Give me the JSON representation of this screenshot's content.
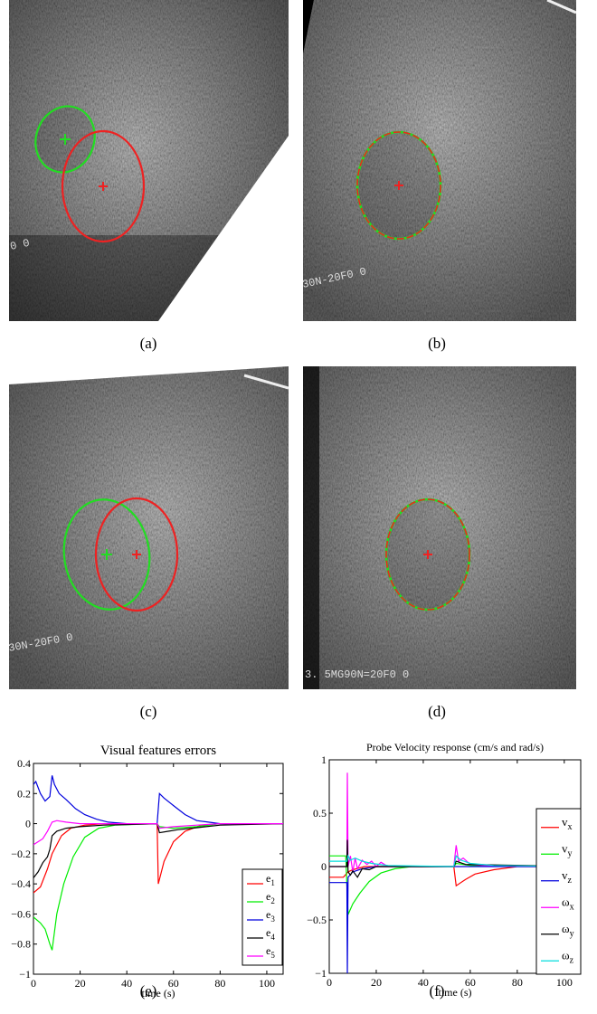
{
  "figure": {
    "panels": [
      {
        "label": "(a)",
        "overlay_text": "0 0"
      },
      {
        "label": "(b)",
        "overlay_text": "30N-20F0 0"
      },
      {
        "label": "(c)",
        "overlay_text": "30N-20F0 0"
      },
      {
        "label": "(d)",
        "overlay_text": "3. 5MG90N=20F0 0"
      }
    ],
    "overlay_colors": {
      "current_contour": "#22dd22",
      "desired_contour": "#ee2222"
    }
  },
  "chart_data": [
    {
      "type": "line",
      "label": "(e)",
      "title": "Visual features errors",
      "xlabel": "time (s)",
      "ylabel": "",
      "xlim": [
        0,
        107
      ],
      "ylim": [
        -1,
        0.4
      ],
      "xticks": [
        0,
        20,
        40,
        60,
        80,
        100
      ],
      "yticks": [
        0.4,
        0.2,
        0,
        -0.2,
        -0.4,
        -0.6,
        -0.8,
        -1
      ],
      "ytick_labels": [
        "0.4",
        "0.2",
        "0",
        "−0.2",
        "−0.4",
        "−0.6",
        "−0.8",
        "−1"
      ],
      "legend_position": "bottom-right",
      "series": [
        {
          "name": "e",
          "sub": "1",
          "color": "#ff0000",
          "points": [
            [
              0,
              -0.46
            ],
            [
              3,
              -0.42
            ],
            [
              6,
              -0.3
            ],
            [
              8,
              -0.2
            ],
            [
              12,
              -0.08
            ],
            [
              16,
              -0.03
            ],
            [
              22,
              -0.01
            ],
            [
              30,
              0
            ],
            [
              53,
              0
            ],
            [
              53.5,
              -0.4
            ],
            [
              56,
              -0.25
            ],
            [
              60,
              -0.12
            ],
            [
              65,
              -0.05
            ],
            [
              72,
              -0.01
            ],
            [
              80,
              0
            ],
            [
              107,
              0
            ]
          ]
        },
        {
          "name": "e",
          "sub": "2",
          "color": "#00ee00",
          "points": [
            [
              0,
              -0.62
            ],
            [
              3,
              -0.66
            ],
            [
              5,
              -0.7
            ],
            [
              7,
              -0.8
            ],
            [
              8,
              -0.84
            ],
            [
              10,
              -0.6
            ],
            [
              13,
              -0.4
            ],
            [
              17,
              -0.22
            ],
            [
              22,
              -0.09
            ],
            [
              28,
              -0.03
            ],
            [
              35,
              -0.01
            ],
            [
              53,
              0
            ],
            [
              54,
              -0.02
            ],
            [
              60,
              -0.03
            ],
            [
              70,
              -0.02
            ],
            [
              80,
              0
            ],
            [
              107,
              0
            ]
          ]
        },
        {
          "name": "e",
          "sub": "3",
          "color": "#0000dd",
          "points": [
            [
              0,
              0.26
            ],
            [
              1,
              0.28
            ],
            [
              3,
              0.2
            ],
            [
              5,
              0.15
            ],
            [
              7,
              0.18
            ],
            [
              8,
              0.32
            ],
            [
              9,
              0.26
            ],
            [
              11,
              0.2
            ],
            [
              14,
              0.16
            ],
            [
              18,
              0.1
            ],
            [
              22,
              0.06
            ],
            [
              27,
              0.03
            ],
            [
              32,
              0.01
            ],
            [
              40,
              0
            ],
            [
              53,
              0
            ],
            [
              54,
              0.2
            ],
            [
              56,
              0.17
            ],
            [
              60,
              0.12
            ],
            [
              65,
              0.06
            ],
            [
              70,
              0.02
            ],
            [
              75,
              0.01
            ],
            [
              80,
              0
            ],
            [
              107,
              0
            ]
          ]
        },
        {
          "name": "e",
          "sub": "4",
          "color": "#000000",
          "points": [
            [
              0,
              -0.36
            ],
            [
              2,
              -0.32
            ],
            [
              4,
              -0.26
            ],
            [
              6,
              -0.22
            ],
            [
              7,
              -0.17
            ],
            [
              8,
              -0.08
            ],
            [
              10,
              -0.05
            ],
            [
              14,
              -0.03
            ],
            [
              20,
              -0.02
            ],
            [
              30,
              -0.01
            ],
            [
              53,
              0
            ],
            [
              54,
              -0.06
            ],
            [
              58,
              -0.05
            ],
            [
              62,
              -0.04
            ],
            [
              68,
              -0.03
            ],
            [
              74,
              -0.02
            ],
            [
              80,
              -0.01
            ],
            [
              107,
              0
            ]
          ]
        },
        {
          "name": "e",
          "sub": "5",
          "color": "#ff00ff",
          "points": [
            [
              0,
              -0.14
            ],
            [
              2,
              -0.12
            ],
            [
              4,
              -0.1
            ],
            [
              6,
              -0.05
            ],
            [
              8,
              0.01
            ],
            [
              10,
              0.02
            ],
            [
              14,
              0.01
            ],
            [
              20,
              0
            ],
            [
              53,
              0
            ],
            [
              54,
              -0.03
            ],
            [
              60,
              -0.02
            ],
            [
              70,
              -0.01
            ],
            [
              80,
              0
            ],
            [
              107,
              0
            ]
          ]
        }
      ]
    },
    {
      "type": "line",
      "label": "(f)",
      "title": "Probe Velocity response (cm/s and rad/s)",
      "xlabel": "time (s)",
      "ylabel": "",
      "xlim": [
        0,
        107
      ],
      "ylim": [
        -1,
        1
      ],
      "xticks": [
        0,
        20,
        40,
        60,
        80,
        100
      ],
      "yticks": [
        1,
        0.5,
        0,
        -0.5,
        -1
      ],
      "ytick_labels": [
        "1",
        "0.5",
        "0",
        "−0.5",
        "−1"
      ],
      "legend_position": "right",
      "series": [
        {
          "name": "v",
          "sub": "x",
          "color": "#ff0000",
          "points": [
            [
              0,
              -0.1
            ],
            [
              6,
              -0.1
            ],
            [
              8,
              -0.05
            ],
            [
              10,
              -0.03
            ],
            [
              15,
              0
            ],
            [
              53,
              0
            ],
            [
              54,
              -0.18
            ],
            [
              58,
              -0.12
            ],
            [
              62,
              -0.07
            ],
            [
              70,
              -0.03
            ],
            [
              80,
              0
            ],
            [
              107,
              0
            ]
          ]
        },
        {
          "name": "v",
          "sub": "y",
          "color": "#00ee00",
          "points": [
            [
              0,
              0.1
            ],
            [
              7,
              0.1
            ],
            [
              8,
              -0.45
            ],
            [
              10,
              -0.35
            ],
            [
              13,
              -0.25
            ],
            [
              17,
              -0.14
            ],
            [
              22,
              -0.06
            ],
            [
              28,
              -0.02
            ],
            [
              35,
              0
            ],
            [
              53,
              0
            ],
            [
              54,
              0.03
            ],
            [
              60,
              0.01
            ],
            [
              107,
              0
            ]
          ]
        },
        {
          "name": "v",
          "sub": "z",
          "color": "#0000dd",
          "points": [
            [
              0,
              -0.15
            ],
            [
              7.5,
              -0.15
            ],
            [
              7.7,
              -1
            ],
            [
              8,
              -0.1
            ],
            [
              10,
              -0.05
            ],
            [
              14,
              -0.02
            ],
            [
              20,
              0
            ],
            [
              107,
              0
            ]
          ]
        },
        {
          "name": "ω",
          "sub": "x",
          "color": "#ff00ff",
          "points": [
            [
              0,
              0
            ],
            [
              7.5,
              0
            ],
            [
              7.7,
              0.88
            ],
            [
              8,
              0
            ],
            [
              9,
              0.1
            ],
            [
              10,
              -0.05
            ],
            [
              11,
              0.08
            ],
            [
              12,
              -0.02
            ],
            [
              14,
              0.06
            ],
            [
              16,
              0.02
            ],
            [
              18,
              0.05
            ],
            [
              20,
              0
            ],
            [
              22,
              0.04
            ],
            [
              25,
              0
            ],
            [
              53,
              0
            ],
            [
              54,
              0.2
            ],
            [
              55,
              0.05
            ],
            [
              57,
              0.08
            ],
            [
              60,
              0.02
            ],
            [
              65,
              0.01
            ],
            [
              107,
              0
            ]
          ]
        },
        {
          "name": "ω",
          "sub": "y",
          "color": "#000000",
          "points": [
            [
              0,
              0
            ],
            [
              7.5,
              0
            ],
            [
              7.7,
              0.25
            ],
            [
              8,
              -0.05
            ],
            [
              9,
              -0.08
            ],
            [
              10,
              -0.04
            ],
            [
              12,
              -0.1
            ],
            [
              14,
              -0.02
            ],
            [
              17,
              -0.03
            ],
            [
              20,
              0
            ],
            [
              53,
              0
            ],
            [
              54,
              0.05
            ],
            [
              58,
              0.02
            ],
            [
              107,
              0
            ]
          ]
        },
        {
          "name": "ω",
          "sub": "z",
          "color": "#00dddd",
          "points": [
            [
              0,
              0.05
            ],
            [
              7.5,
              0.05
            ],
            [
              8,
              0.1
            ],
            [
              9,
              0.06
            ],
            [
              11,
              0.08
            ],
            [
              14,
              0.05
            ],
            [
              18,
              0.03
            ],
            [
              25,
              0.01
            ],
            [
              53,
              0
            ],
            [
              54,
              0.1
            ],
            [
              56,
              0.06
            ],
            [
              60,
              0.03
            ],
            [
              70,
              0.01
            ],
            [
              107,
              0
            ]
          ]
        }
      ]
    }
  ]
}
